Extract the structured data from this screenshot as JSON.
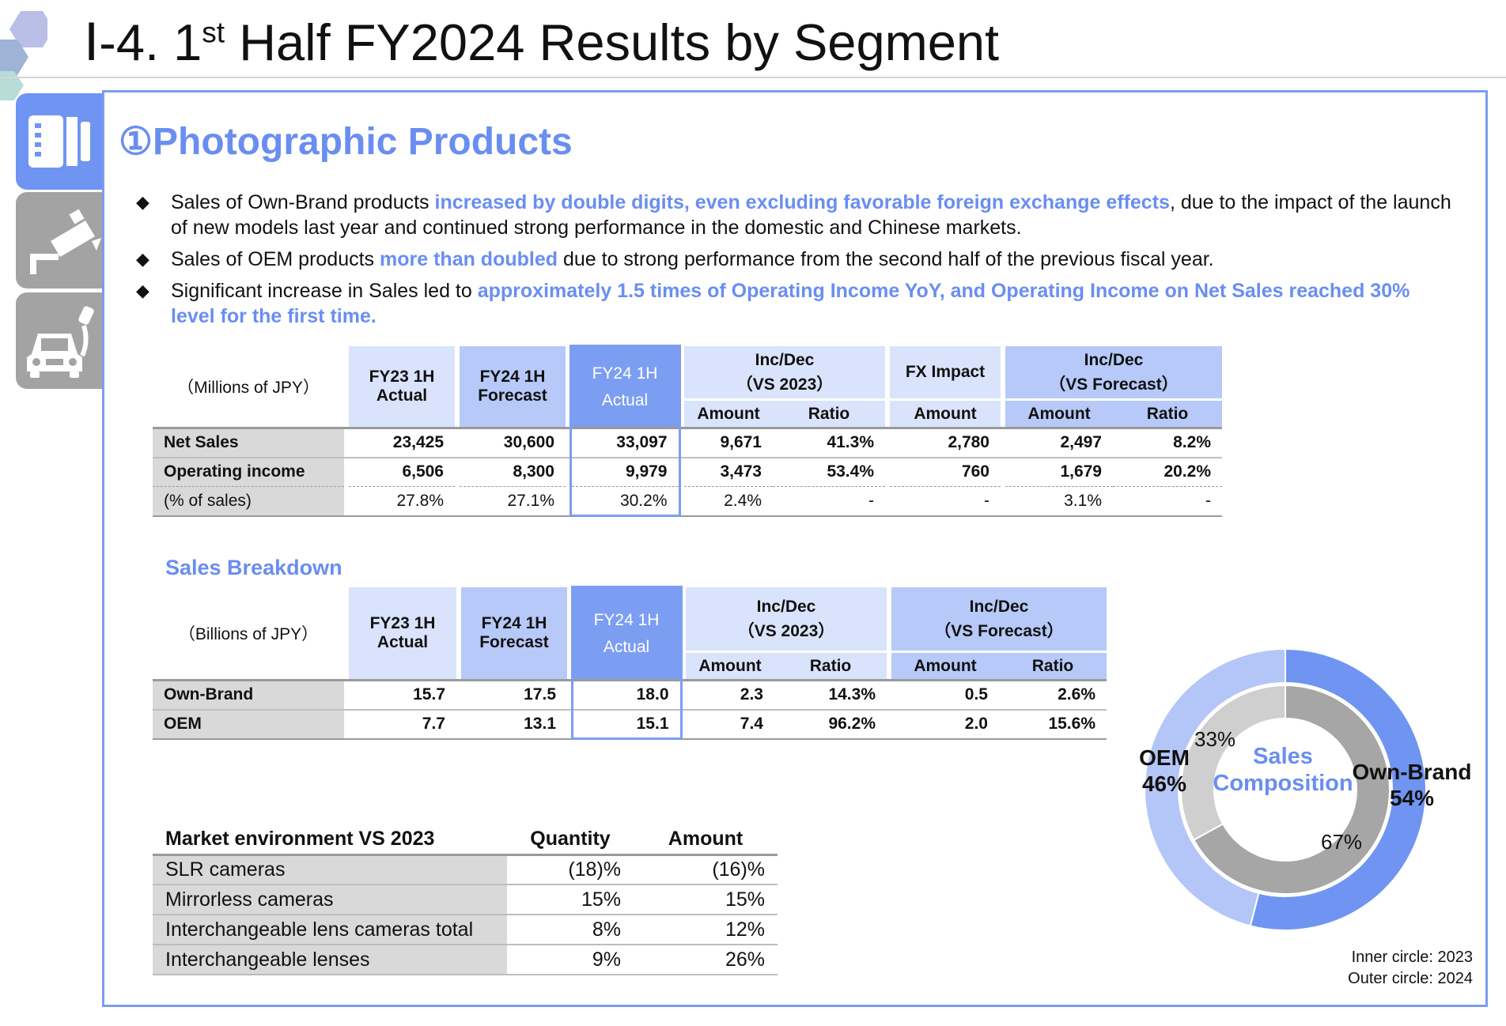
{
  "page": {
    "title_prefix": "Ⅰ-4. 1",
    "title_sup": "st",
    "title_suffix": " Half FY2024 Results by Segment"
  },
  "side_tabs": [
    {
      "icon": "film-camera-icon",
      "active": true
    },
    {
      "icon": "security-camera-icon",
      "active": false
    },
    {
      "icon": "car-ev-icon",
      "active": false
    }
  ],
  "section": {
    "title": "①Photographic Products"
  },
  "bullets": [
    {
      "pre": "Sales of Own-Brand products ",
      "hl": "increased by double digits, even excluding favorable foreign exchange effects",
      "post": ", due to the impact of the launch of new models last year and continued strong performance in the domestic and Chinese markets."
    },
    {
      "pre": "Sales of OEM products ",
      "hl": "more than doubled",
      "post": " due to strong performance from the second half of the previous fiscal year."
    },
    {
      "pre": "Significant increase in Sales led to ",
      "hl": "approximately 1.5 times of Operating Income YoY, and Operating Income on Net Sales reached 30% level for the first time.",
      "post": ""
    }
  ],
  "bullet_mark": "◆",
  "results_table": {
    "unit": "（Millions of JPY）",
    "col_fy23": "FY23 1H\nActual",
    "col_fy24f": "FY24 1H\nForecast",
    "col_fy24a": "FY24 1H\nActual",
    "col_incdec": "Inc/Dec\n（VS 2023）",
    "col_fx": "FX Impact",
    "col_incdec_fc": "Inc/Dec\n（VS Forecast）",
    "sub_amount": "Amount",
    "sub_ratio": "Ratio",
    "rows": [
      {
        "label": "Net Sales",
        "fy23": "23,425",
        "fy24f": "30,600",
        "fy24a": "33,097",
        "inc_amt": "9,671",
        "inc_ratio": "41.3%",
        "fx": "2,780",
        "fc_amt": "2,497",
        "fc_ratio": "8.2%"
      },
      {
        "label": "Operating income",
        "fy23": "6,506",
        "fy24f": "8,300",
        "fy24a": "9,979",
        "inc_amt": "3,473",
        "inc_ratio": "53.4%",
        "fx": "760",
        "fc_amt": "1,679",
        "fc_ratio": "20.2%"
      },
      {
        "label": "(% of sales)",
        "fy23": "27.8%",
        "fy24f": "27.1%",
        "fy24a": "30.2%",
        "inc_amt": "2.4%",
        "inc_ratio": "-",
        "fx": "-",
        "fc_amt": "3.1%",
        "fc_ratio": "-"
      }
    ]
  },
  "breakdown": {
    "title": "Sales Breakdown",
    "unit": "（Billions of JPY）",
    "col_fy23": "FY23 1H\nActual",
    "col_fy24f": "FY24 1H\nForecast",
    "col_fy24a": "FY24 1H\nActual",
    "col_incdec": "Inc/Dec\n（VS 2023）",
    "col_incdec_fc": "Inc/Dec\n（VS Forecast）",
    "sub_amount": "Amount",
    "sub_ratio": "Ratio",
    "rows": [
      {
        "label": "Own-Brand",
        "fy23": "15.7",
        "fy24f": "17.5",
        "fy24a": "18.0",
        "inc_amt": "2.3",
        "inc_ratio": "14.3%",
        "fc_amt": "0.5",
        "fc_ratio": "2.6%"
      },
      {
        "label": "OEM",
        "fy23": "7.7",
        "fy24f": "13.1",
        "fy24a": "15.1",
        "inc_amt": "7.4",
        "inc_ratio": "96.2%",
        "fc_amt": "2.0",
        "fc_ratio": "15.6%"
      }
    ]
  },
  "market": {
    "header": {
      "label": "Market environment VS 2023",
      "qty": "Quantity",
      "amt": "Amount"
    },
    "rows": [
      {
        "label": "SLR cameras",
        "qty": "(18)%",
        "amt": "(16)%"
      },
      {
        "label": "Mirrorless cameras",
        "qty": "15%",
        "amt": "15%"
      },
      {
        "label": "Interchangeable lens cameras total",
        "qty": "8%",
        "amt": "12%"
      },
      {
        "label": "Interchangeable lenses",
        "qty": "9%",
        "amt": "26%"
      }
    ]
  },
  "chart_data": {
    "type": "pie",
    "title": "Sales\nComposition",
    "series": [
      {
        "name": "Inner circle: 2023",
        "categories": [
          "Own-Brand",
          "OEM"
        ],
        "values": [
          67,
          33
        ]
      },
      {
        "name": "Outer circle: 2024",
        "categories": [
          "Own-Brand",
          "OEM"
        ],
        "values": [
          54,
          46
        ]
      }
    ],
    "labels": {
      "inner_own": "67%",
      "inner_oem": "33%",
      "outer_own": "Own-Brand\n54%",
      "outer_oem": "OEM\n46%"
    },
    "colors": {
      "outer_own": "#6f94f2",
      "outer_oem": "#b4c6f7",
      "inner_own": "#a6a6a6",
      "inner_oem": "#cfcfcf"
    },
    "notes": [
      "Inner circle: 2023",
      "Outer circle: 2024"
    ]
  }
}
